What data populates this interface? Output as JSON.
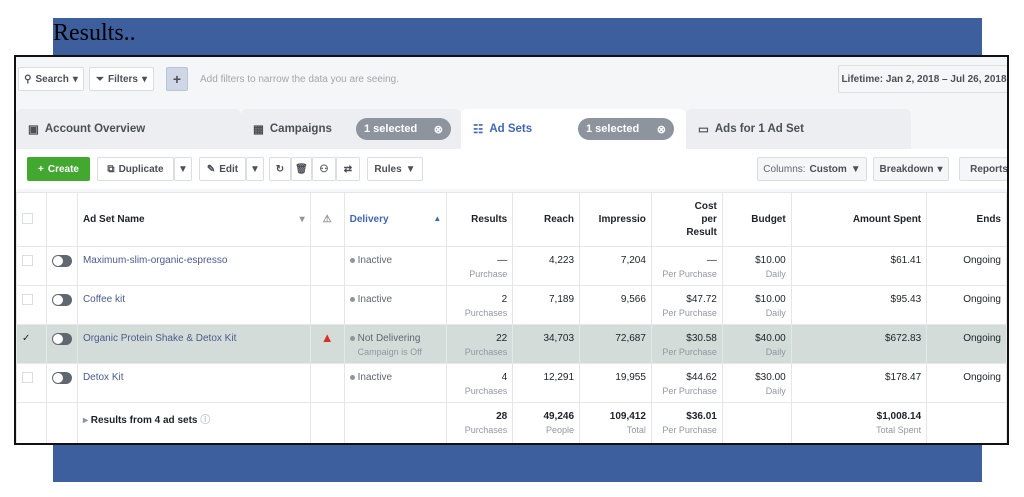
{
  "slide_title": "Results..",
  "filter_bar": {
    "search": "Search",
    "filters": "Filters",
    "add": "+",
    "placeholder": "Add filters to narrow the data you are seeing.",
    "date_range": "Lifetime: Jan 2, 2018 – Jul 26, 2018"
  },
  "tabs": [
    {
      "label": "Account Overview"
    },
    {
      "label": "Campaigns",
      "selected": "1 selected"
    },
    {
      "label": "Ad Sets",
      "selected": "1 selected",
      "active": true
    },
    {
      "label": "Ads for 1 Ad Set"
    }
  ],
  "toolbar": {
    "create": "Create",
    "duplicate": "Duplicate",
    "edit": "Edit",
    "rules": "Rules",
    "columns_label": "Columns:",
    "columns_value": "Custom",
    "breakdown": "Breakdown",
    "reports": "Reports"
  },
  "colors": {
    "create": "#42a82f",
    "accent": "#4267b2",
    "selected_row": "#d3dcd8",
    "warning": "#d93025"
  },
  "table": {
    "headers": {
      "name": "Ad Set Name",
      "delivery": "Delivery",
      "results": "Results",
      "reach": "Reach",
      "impressions": "Impressio",
      "cost": "Cost per Result",
      "budget": "Budget",
      "amount": "Amount Spent",
      "ends": "Ends"
    },
    "rows": [
      {
        "name": "Maximum-slim-organic-espresso",
        "delivery": "Inactive",
        "delivery_sub": "",
        "results": "—",
        "results_sub": "Purchase",
        "reach": "4,223",
        "impressions": "7,204",
        "cost": "—",
        "cost_sub": "Per Purchase",
        "budget": "$10.00",
        "budget_sub": "Daily",
        "amount": "$61.41",
        "ends": "Ongoing",
        "checked": false,
        "warning": false
      },
      {
        "name": "Coffee kit",
        "delivery": "Inactive",
        "delivery_sub": "",
        "results": "2",
        "results_sub": "Purchases",
        "reach": "7,189",
        "impressions": "9,566",
        "cost": "$47.72",
        "cost_sub": "Per Purchase",
        "budget": "$10.00",
        "budget_sub": "Daily",
        "amount": "$95.43",
        "ends": "Ongoing",
        "checked": false,
        "warning": false
      },
      {
        "name": "Organic Protein Shake & Detox Kit",
        "delivery": "Not Delivering",
        "delivery_sub": "Campaign is Off",
        "results": "22",
        "results_sub": "Purchases",
        "reach": "34,703",
        "impressions": "72,687",
        "cost": "$30.58",
        "cost_sub": "Per Purchase",
        "budget": "$40.00",
        "budget_sub": "Daily",
        "amount": "$672.83",
        "ends": "Ongoing",
        "checked": true,
        "warning": true
      },
      {
        "name": "Detox Kit",
        "delivery": "Inactive",
        "delivery_sub": "",
        "results": "4",
        "results_sub": "Purchases",
        "reach": "12,291",
        "impressions": "19,955",
        "cost": "$44.62",
        "cost_sub": "Per Purchase",
        "budget": "$30.00",
        "budget_sub": "Daily",
        "amount": "$178.47",
        "ends": "Ongoing",
        "checked": false,
        "warning": false
      }
    ],
    "summary": {
      "label": "Results from 4 ad sets",
      "results": "28",
      "results_sub": "Purchases",
      "reach": "49,246",
      "reach_sub": "People",
      "impressions": "109,412",
      "impressions_sub": "Total",
      "cost": "$36.01",
      "cost_sub": "Per Purchase",
      "amount": "$1,008.14",
      "amount_sub": "Total Spent"
    }
  }
}
